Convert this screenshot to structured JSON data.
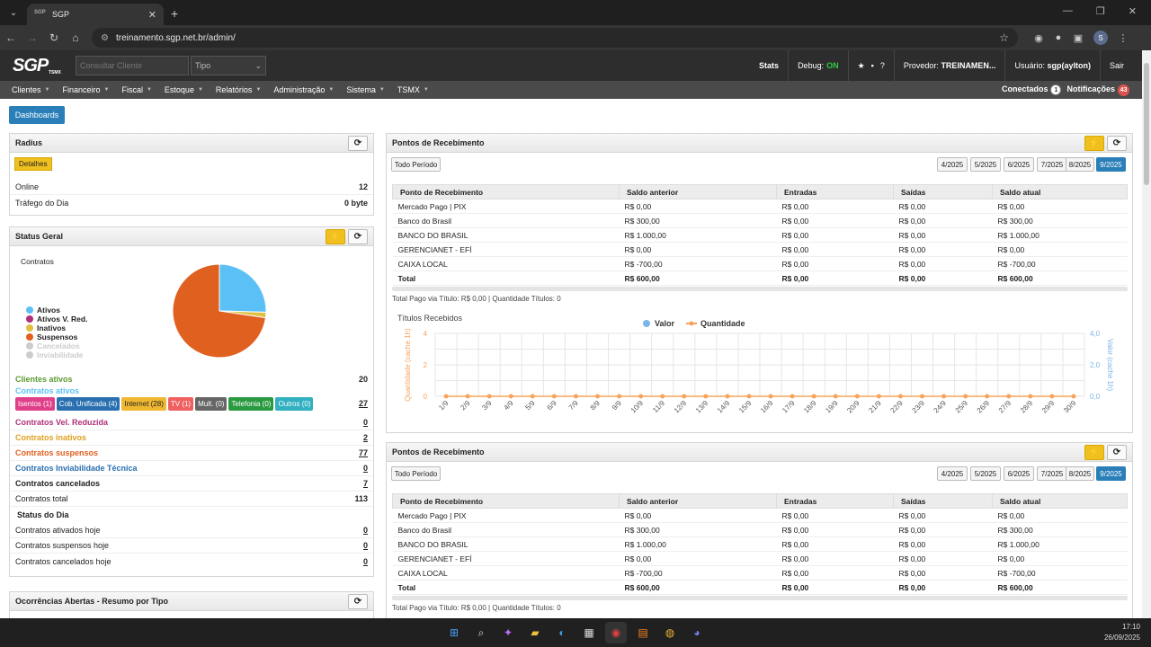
{
  "browser": {
    "tab_title": "SGP",
    "tab_favicon": "SGP",
    "url": "treinamento.sgp.net.br/admin/"
  },
  "header": {
    "search_placeholder": "Consultar Cliente",
    "tipo_placeholder": "Tipo",
    "stats": "Stats",
    "debug_label": "Debug:",
    "debug_value": "ON",
    "provider_label": "Provedor:",
    "provider_value": "TREINAMEN...",
    "user_label": "Usuário:",
    "user_value": "sgp(aylton)",
    "logout": "Sair",
    "logo": "SGP",
    "logo_sub": "TSMX"
  },
  "menu": {
    "items": [
      "Clientes",
      "Financeiro",
      "Fiscal",
      "Estoque",
      "Relatórios",
      "Administração",
      "Sistema",
      "TSMX"
    ],
    "connected_label": "Conectados",
    "connected_count": "1",
    "notifications_label": "Notificações",
    "notifications_count": "43"
  },
  "dashboards_button": "Dashboards",
  "radius": {
    "title": "Radius",
    "details": "Detalhes",
    "online_label": "Online",
    "online_value": "12",
    "traffic_label": "Tráfego do Dia",
    "traffic_value": "0 byte"
  },
  "status_geral": {
    "title": "Status Geral",
    "contracts_label": "Contratos",
    "legend": [
      {
        "name": "Ativos",
        "color": "#5bc0f5"
      },
      {
        "name": "Ativos V. Red.",
        "color": "#b0307a"
      },
      {
        "name": "Inativos",
        "color": "#e0c040"
      },
      {
        "name": "Suspensos",
        "color": "#e06020"
      },
      {
        "name": "Cancelados",
        "color": "#cccccc"
      },
      {
        "name": "Inviabilidade",
        "color": "#cccccc"
      }
    ],
    "clients_active_label": "Clientes ativos",
    "clients_active_value": "20",
    "contracts_active_label": "Contratos ativos",
    "contracts_active_value": "27",
    "tags": [
      {
        "text": "Isentos (1)",
        "color": "#e0408a"
      },
      {
        "text": "Cob. Unificada (4)",
        "color": "#2a70b0"
      },
      {
        "text": "Internet (28)",
        "color": "#f0b830"
      },
      {
        "text": "TV (1)",
        "color": "#f06060"
      },
      {
        "text": "Mult. (0)",
        "color": "#666666"
      },
      {
        "text": "Telefonia (0)",
        "color": "#2a9a40"
      },
      {
        "text": "Outros (0)",
        "color": "#30b0c0"
      }
    ],
    "rows": [
      {
        "label": "Contratos Vel. Reduzida",
        "value": "0",
        "color": "#b0307a"
      },
      {
        "label": "Contratos inativos",
        "value": "2",
        "color": "#e0a020"
      },
      {
        "label": "Contratos suspensos",
        "value": "77",
        "color": "#e06020"
      },
      {
        "label": "Contratos Inviabilidade Técnica",
        "value": "0",
        "color": "#2a70b0"
      },
      {
        "label": "Contratos cancelados",
        "value": "7",
        "color": "#333333"
      },
      {
        "label": "Contratos total",
        "value": "113",
        "color": "#333333"
      }
    ],
    "day_title": "Status do Dia",
    "day_rows": [
      {
        "label": "Contratos ativados hoje",
        "value": "0"
      },
      {
        "label": "Contratos suspensos hoje",
        "value": "0"
      },
      {
        "label": "Contratos cancelados hoje",
        "value": "0"
      }
    ]
  },
  "ocorrencias": {
    "title": "Ocorrências Abertas - Resumo por Tipo"
  },
  "pontos": {
    "title": "Pontos de Recebimento",
    "all_period": "Todo Período",
    "periods": [
      "4/2025",
      "5/2025",
      "6/2025",
      "7/2025",
      "8/2025",
      "9/2025"
    ],
    "columns": [
      "Ponto de Recebimento",
      "Saldo anterior",
      "Entradas",
      "Saídas",
      "Saldo atual"
    ],
    "rows": [
      [
        "Mercado Pago | PIX",
        "R$ 0,00",
        "R$ 0,00",
        "R$ 0,00",
        "R$ 0,00"
      ],
      [
        "Banco do Brasil",
        "R$ 300,00",
        "R$ 0,00",
        "R$ 0,00",
        "R$ 300,00"
      ],
      [
        "BANCO DO BRASIL",
        "R$ 1.000,00",
        "R$ 0,00",
        "R$ 0,00",
        "R$ 1.000,00"
      ],
      [
        "GERENCIANET - EFÍ",
        "R$ 0,00",
        "R$ 0,00",
        "R$ 0,00",
        "R$ 0,00"
      ],
      [
        "CAIXA LOCAL",
        "R$ -700,00",
        "R$ 0,00",
        "R$ 0,00",
        "R$ -700,00"
      ]
    ],
    "total": [
      "Total",
      "R$ 600,00",
      "R$ 0,00",
      "R$ 0,00",
      "R$ 600,00"
    ],
    "total_line": "Total Pago via Título: R$ 0,00 | Quantidade Títulos: 0"
  },
  "chart_data": {
    "type": "line",
    "title": "Títulos Recebidos",
    "x": [
      "1/9",
      "2/9",
      "3/9",
      "4/9",
      "5/9",
      "6/9",
      "7/9",
      "8/9",
      "9/9",
      "10/9",
      "11/9",
      "12/9",
      "13/9",
      "14/9",
      "15/9",
      "16/9",
      "17/9",
      "18/9",
      "19/9",
      "20/9",
      "21/9",
      "22/9",
      "23/9",
      "24/9",
      "25/9",
      "26/9",
      "27/9",
      "28/9",
      "29/9",
      "30/9"
    ],
    "series": [
      {
        "name": "Valor",
        "color": "#7cb5ec",
        "axis": "right",
        "values": [
          0,
          0,
          0,
          0,
          0,
          0,
          0,
          0,
          0,
          0,
          0,
          0,
          0,
          0,
          0,
          0,
          0,
          0,
          0,
          0,
          0,
          0,
          0,
          0,
          0,
          0,
          0,
          0,
          0,
          0
        ]
      },
      {
        "name": "Quantidade",
        "color": "#f7a35c",
        "axis": "left",
        "values": [
          0,
          0,
          0,
          0,
          0,
          0,
          0,
          0,
          0,
          0,
          0,
          0,
          0,
          0,
          0,
          0,
          0,
          0,
          0,
          0,
          0,
          0,
          0,
          0,
          0,
          0,
          0,
          0,
          0,
          0
        ]
      }
    ],
    "ylabel_left": "Quantidade (cache 1h)",
    "ylabel_right": "Valor (cache 1h)",
    "ylim_left": [
      0,
      4
    ],
    "ylim_right": [
      0,
      4
    ],
    "yticks_left": [
      "0",
      "2",
      "4"
    ],
    "yticks_right": [
      "0,0",
      "2,0",
      "4,0"
    ],
    "legend": "top-center",
    "grid": true
  },
  "taskbar": {
    "time": "17:10",
    "date": "26/09/2025"
  }
}
